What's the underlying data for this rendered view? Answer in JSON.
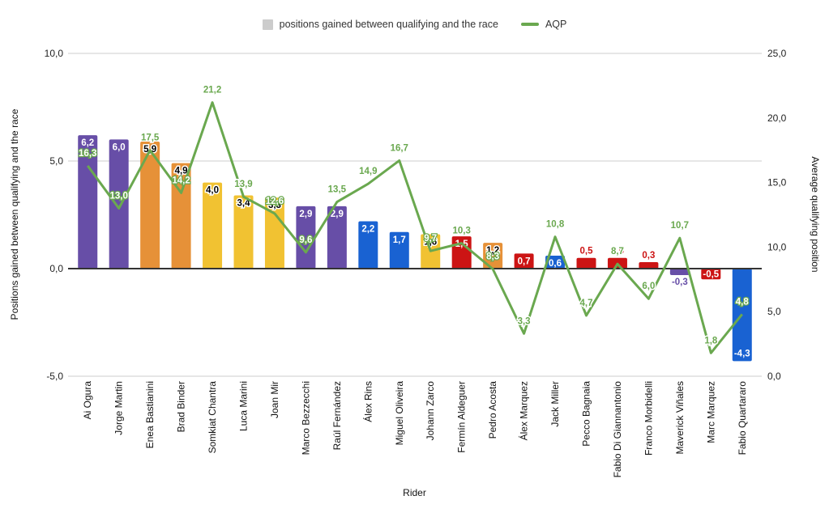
{
  "chart_data": {
    "type": "combo",
    "title": "",
    "xlabel": "Rider",
    "ylabel": "Positions gained between qualifying and the race",
    "y2label": "Average qualifying position",
    "ylim": [
      -5,
      10
    ],
    "y2lim": [
      0,
      25
    ],
    "yticks": [
      10,
      5,
      0,
      -5
    ],
    "y2ticks": [
      25,
      20,
      15,
      10,
      5,
      0
    ],
    "grid": true,
    "legend_position": "top",
    "number_format": "decimal-comma",
    "categories": [
      "Ai Ogura",
      "Jorge Martin",
      "Enea Bastianini",
      "Brad Binder",
      "Somkiat Chantra",
      "Luca Marini",
      "Joan Mir",
      "Marco Bezzecchi",
      "Raúl Fernández",
      "Álex Rins",
      "Miguel Oliveira",
      "Johann Zarco",
      "Fermín Aldeguer",
      "Pedro Acosta",
      "Álex Marquez",
      "Jack Miller",
      "Pecco Bagnaia",
      "Fabio Di Giannantonio",
      "Franco Morbidelli",
      "Maverick Viñales",
      "Marc Marquez",
      "Fabio Quartararo"
    ],
    "series": [
      {
        "name": "positions gained between qualifying and the race",
        "type": "bar",
        "axis": "left",
        "values": [
          6.2,
          6.0,
          5.9,
          4.9,
          4.0,
          3.4,
          3.3,
          2.9,
          2.9,
          2.2,
          1.7,
          1.6,
          1.5,
          1.2,
          0.7,
          0.6,
          0.5,
          0.5,
          0.3,
          -0.3,
          -0.5,
          -4.3
        ],
        "colors": [
          "purple",
          "purple",
          "orange",
          "orange",
          "yellow",
          "yellow",
          "yellow",
          "purple",
          "purple",
          "blue",
          "blue",
          "yellow",
          "red",
          "orange",
          "red",
          "blue",
          "red",
          "red",
          "red",
          "purple",
          "red",
          "blue"
        ],
        "label_pos": [
          "in-top",
          "in-top",
          "in-top",
          "in-top",
          "in-top",
          "in-top",
          "in-top",
          "in-top",
          "in-top",
          "in-top",
          "in-top",
          "in-top",
          "in-top",
          "in-top",
          "in-top",
          "in-top",
          "above",
          "above",
          "above",
          "below",
          "in-center",
          "in-bottom"
        ]
      },
      {
        "name": "AQP",
        "type": "line",
        "axis": "right",
        "values": [
          16.3,
          13.0,
          17.5,
          14.2,
          21.2,
          13.9,
          12.6,
          9.6,
          13.5,
          14.9,
          16.7,
          9.7,
          10.3,
          8.3,
          3.3,
          10.8,
          4.7,
          8.7,
          6.0,
          10.7,
          1.8,
          4.8
        ]
      }
    ]
  },
  "colors": {
    "purple": "#674EA7",
    "orange": "#E69138",
    "yellow": "#F1C232",
    "blue": "#1962D2",
    "red": "#CC1414",
    "line_green": "#6AA84F",
    "legend_swatch_gray": "#CCCCCC",
    "gridline": "#CCCCCC",
    "zero_line": "#333333",
    "tick_text": "#222222"
  }
}
